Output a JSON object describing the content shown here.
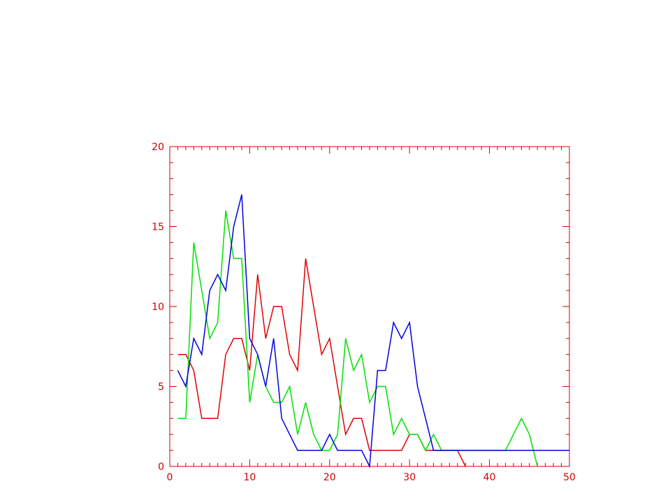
{
  "chart_data": {
    "type": "line",
    "title": "",
    "xlabel": "",
    "ylabel": "",
    "xlim": [
      0,
      50
    ],
    "ylim": [
      0,
      20
    ],
    "x_ticks": [
      0,
      10,
      20,
      30,
      40,
      50
    ],
    "y_ticks": [
      0,
      5,
      10,
      15,
      20
    ],
    "x_tick_labels": [
      "0",
      "10",
      "20",
      "30",
      "40",
      "50"
    ],
    "y_tick_labels": [
      "0",
      "5",
      "10",
      "15",
      "20"
    ],
    "x_minor_step": 1,
    "y_minor_step": 1,
    "grid": false,
    "axis_color": "#d00000",
    "series": [
      {
        "color": "#e00000",
        "x": [
          1,
          2,
          3,
          4,
          5,
          6,
          7,
          8,
          9,
          10,
          11,
          12,
          13,
          14,
          15,
          16,
          17,
          18,
          19,
          20,
          21,
          22,
          23,
          24,
          25,
          26,
          27,
          28,
          29,
          30,
          31,
          32,
          33,
          34,
          35,
          36,
          37
        ],
        "y": [
          7,
          7,
          6,
          3,
          3,
          3,
          7,
          8,
          8,
          6,
          12,
          8,
          10,
          10,
          7,
          6,
          13,
          10,
          7,
          8,
          5,
          2,
          3,
          3,
          1,
          1,
          1,
          1,
          1,
          2,
          2,
          1,
          1,
          1,
          1,
          1,
          0
        ]
      },
      {
        "color": "#00e000",
        "x": [
          1,
          2,
          3,
          4,
          5,
          6,
          7,
          8,
          9,
          10,
          11,
          12,
          13,
          14,
          15,
          16,
          17,
          18,
          19,
          20,
          21,
          22,
          23,
          24,
          25,
          26,
          27,
          28,
          29,
          30,
          31,
          32,
          33,
          34,
          35,
          36,
          37,
          38,
          39,
          40,
          41,
          42,
          43,
          44,
          45,
          46
        ],
        "y": [
          3,
          3,
          14,
          11,
          8,
          9,
          16,
          13,
          13,
          4,
          7,
          5,
          4,
          4,
          5,
          2,
          4,
          2,
          1,
          1,
          2,
          8,
          6,
          7,
          4,
          5,
          5,
          2,
          3,
          2,
          2,
          1,
          2,
          1,
          1,
          1,
          1,
          1,
          1,
          1,
          1,
          1,
          2,
          3,
          2,
          0
        ]
      },
      {
        "color": "#0000e0",
        "x": [
          1,
          2,
          3,
          4,
          5,
          6,
          7,
          8,
          9,
          10,
          11,
          12,
          13,
          14,
          15,
          16,
          17,
          18,
          19,
          20,
          21,
          22,
          23,
          24,
          25,
          26,
          27,
          28,
          29,
          30,
          31,
          32,
          33,
          34,
          35,
          36,
          37,
          38,
          39,
          40,
          41,
          42,
          43,
          44,
          45,
          46,
          47,
          48,
          49,
          50
        ],
        "y": [
          6,
          5,
          8,
          7,
          11,
          12,
          11,
          15,
          17,
          8,
          7,
          5,
          8,
          3,
          2,
          1,
          1,
          1,
          1,
          2,
          1,
          1,
          1,
          1,
          0,
          6,
          6,
          9,
          8,
          9,
          5,
          3,
          1,
          1,
          1,
          1,
          1,
          1,
          1,
          1,
          1,
          1,
          1,
          1,
          1,
          1,
          1,
          1,
          1,
          1
        ]
      }
    ]
  }
}
